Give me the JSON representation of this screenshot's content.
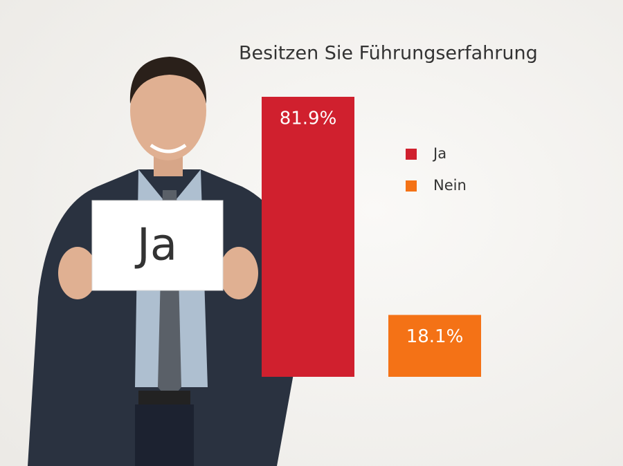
{
  "chart_data": {
    "type": "bar",
    "title": "Besitzen Sie Führungserfahrung",
    "series": [
      {
        "name": "Ja",
        "color": "#d0202e",
        "values": [
          81.9
        ],
        "value_labels": [
          "81.9%"
        ]
      },
      {
        "name": "Nein",
        "color": "#f47216",
        "values": [
          18.1
        ],
        "value_labels": [
          "18.1%"
        ]
      }
    ],
    "legend": "upper-right"
  },
  "photo": {
    "sign_text": "Ja"
  }
}
